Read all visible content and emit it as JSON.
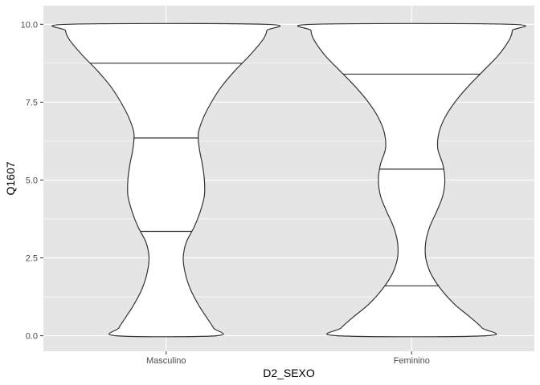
{
  "chart_data": {
    "type": "violin",
    "xlabel": "D2_SEXO",
    "ylabel": "Q1607",
    "categories": [
      "Masculino",
      "Feminino"
    ],
    "ylim": [
      -0.5,
      10.6
    ],
    "y_ticks": [
      0.0,
      2.5,
      5.0,
      7.5,
      10.0
    ],
    "y_tick_labels": [
      "0.0",
      "2.5",
      "5.0",
      "7.5",
      "10.0"
    ],
    "grid": true,
    "background_color": "#e5e5e5",
    "grid_color": "#ffffff",
    "violin_fill": "#ffffff",
    "violin_stroke": "#333333",
    "violins": [
      {
        "category": "Masculino",
        "quantiles": [
          3.35,
          6.35,
          8.75
        ],
        "profile": [
          [
            0.0,
            0.5
          ],
          [
            0.25,
            0.47
          ],
          [
            0.6,
            0.4
          ],
          [
            1.0,
            0.32
          ],
          [
            1.5,
            0.24
          ],
          [
            2.0,
            0.19
          ],
          [
            2.5,
            0.17
          ],
          [
            3.0,
            0.2
          ],
          [
            3.5,
            0.28
          ],
          [
            4.0,
            0.34
          ],
          [
            4.5,
            0.38
          ],
          [
            5.0,
            0.38
          ],
          [
            5.5,
            0.36
          ],
          [
            6.0,
            0.33
          ],
          [
            6.5,
            0.32
          ],
          [
            7.0,
            0.37
          ],
          [
            7.5,
            0.45
          ],
          [
            8.0,
            0.55
          ],
          [
            8.5,
            0.68
          ],
          [
            9.0,
            0.83
          ],
          [
            9.5,
            0.96
          ],
          [
            9.8,
            1.0
          ],
          [
            10.0,
            0.98
          ]
        ]
      },
      {
        "category": "Feminino",
        "quantiles": [
          1.6,
          5.35,
          8.4
        ],
        "profile": [
          [
            0.0,
            0.74
          ],
          [
            0.25,
            0.7
          ],
          [
            0.6,
            0.58
          ],
          [
            1.0,
            0.43
          ],
          [
            1.5,
            0.29
          ],
          [
            2.0,
            0.19
          ],
          [
            2.5,
            0.14
          ],
          [
            3.0,
            0.14
          ],
          [
            3.5,
            0.18
          ],
          [
            4.0,
            0.25
          ],
          [
            4.5,
            0.31
          ],
          [
            5.0,
            0.33
          ],
          [
            5.5,
            0.31
          ],
          [
            6.0,
            0.26
          ],
          [
            6.5,
            0.27
          ],
          [
            7.0,
            0.33
          ],
          [
            7.5,
            0.43
          ],
          [
            8.0,
            0.56
          ],
          [
            8.5,
            0.71
          ],
          [
            9.0,
            0.86
          ],
          [
            9.5,
            0.97
          ],
          [
            9.8,
            1.0
          ],
          [
            10.0,
            0.98
          ]
        ]
      }
    ]
  }
}
